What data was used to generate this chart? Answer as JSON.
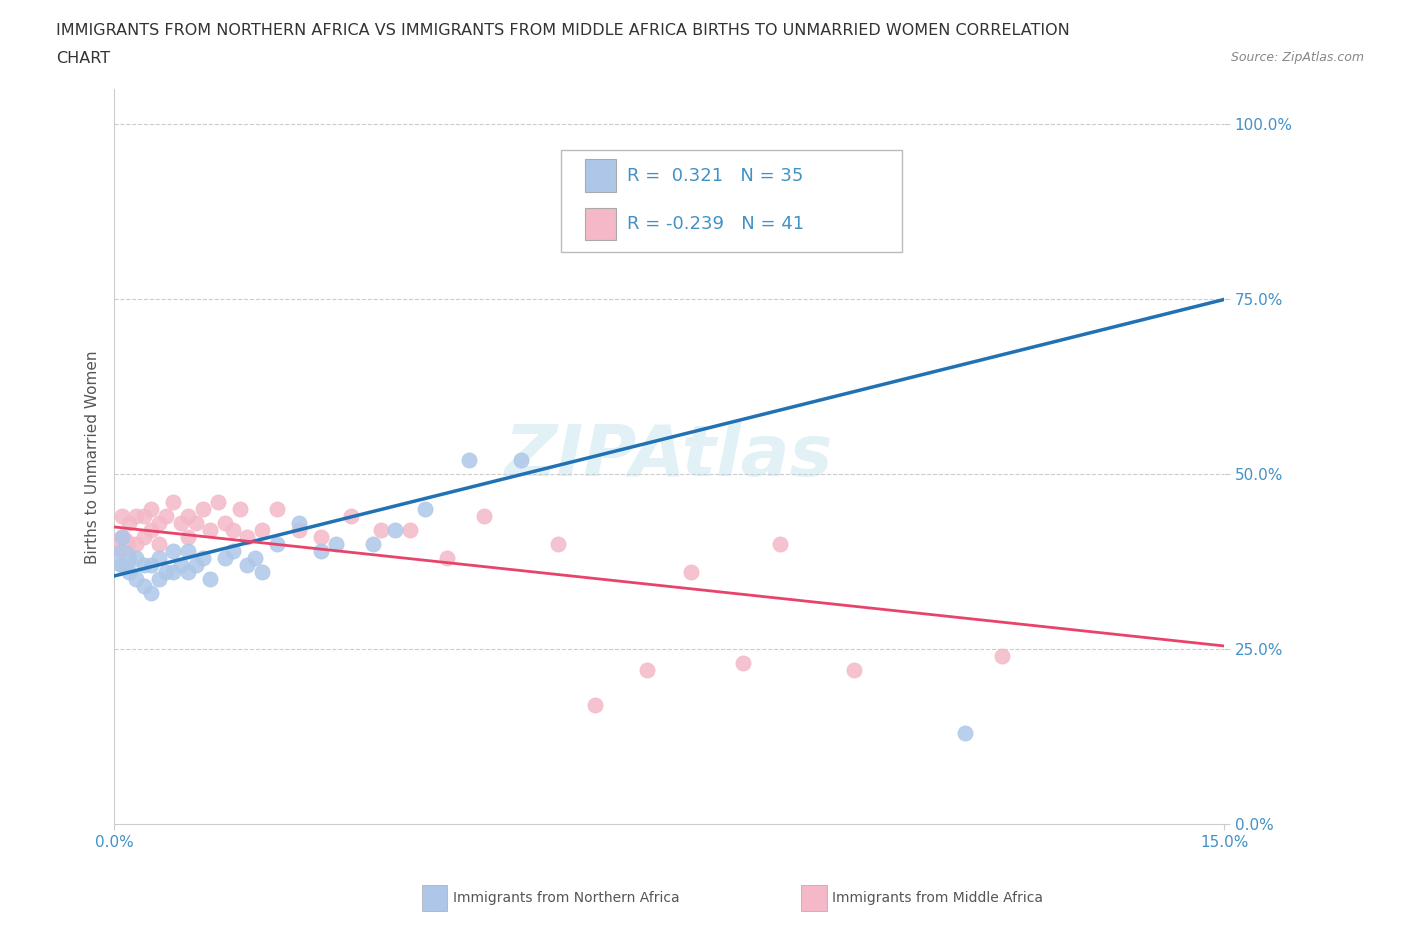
{
  "title_line1": "IMMIGRANTS FROM NORTHERN AFRICA VS IMMIGRANTS FROM MIDDLE AFRICA BIRTHS TO UNMARRIED WOMEN CORRELATION",
  "title_line2": "CHART",
  "source": "Source: ZipAtlas.com",
  "ylabel": "Births to Unmarried Women",
  "xlim": [
    0.0,
    0.15
  ],
  "ylim": [
    0.0,
    1.05
  ],
  "ytick_vals": [
    0.0,
    0.25,
    0.5,
    0.75,
    1.0
  ],
  "ytick_labels": [
    "0.0%",
    "25.0%",
    "50.0%",
    "75.0%",
    "100.0%"
  ],
  "xtick_vals": [
    0.0,
    0.15
  ],
  "xtick_labels": [
    "0.0%",
    "15.0%"
  ],
  "grid_color": "#cccccc",
  "background_color": "#ffffff",
  "blue_scatter_color": "#aec7e8",
  "pink_scatter_color": "#f4b8c8",
  "blue_line_color": "#2171b5",
  "pink_line_color": "#e8446a",
  "tick_color": "#4292c6",
  "series1_name": "Immigrants from Northern Africa",
  "series2_name": "Immigrants from Middle Africa",
  "legend_text1": "R =  0.321   N = 35",
  "legend_text2": "R = -0.239   N = 41",
  "watermark": "ZIPAtlas",
  "title_fontsize": 11.5,
  "tick_fontsize": 11,
  "legend_fontsize": 13,
  "ylabel_fontsize": 11,
  "blue_trend_x0": 0.0,
  "blue_trend_y0": 0.355,
  "blue_trend_x1": 0.15,
  "blue_trend_y1": 0.75,
  "pink_trend_x0": 0.0,
  "pink_trend_y0": 0.425,
  "pink_trend_x1": 0.15,
  "pink_trend_y1": 0.255,
  "blue_scatter_x": [
    0.001,
    0.001,
    0.002,
    0.003,
    0.003,
    0.004,
    0.004,
    0.005,
    0.005,
    0.006,
    0.006,
    0.007,
    0.008,
    0.008,
    0.009,
    0.01,
    0.01,
    0.011,
    0.012,
    0.013,
    0.015,
    0.016,
    0.018,
    0.019,
    0.02,
    0.022,
    0.025,
    0.028,
    0.03,
    0.035,
    0.038,
    0.042,
    0.048,
    0.055,
    0.115
  ],
  "blue_scatter_y": [
    0.37,
    0.41,
    0.36,
    0.35,
    0.38,
    0.34,
    0.37,
    0.33,
    0.37,
    0.35,
    0.38,
    0.36,
    0.36,
    0.39,
    0.37,
    0.36,
    0.39,
    0.37,
    0.38,
    0.35,
    0.38,
    0.39,
    0.37,
    0.38,
    0.36,
    0.4,
    0.43,
    0.39,
    0.4,
    0.4,
    0.42,
    0.45,
    0.52,
    0.52,
    0.13
  ],
  "pink_scatter_x": [
    0.001,
    0.001,
    0.002,
    0.003,
    0.003,
    0.004,
    0.004,
    0.005,
    0.005,
    0.006,
    0.006,
    0.007,
    0.008,
    0.009,
    0.01,
    0.01,
    0.011,
    0.012,
    0.013,
    0.014,
    0.015,
    0.016,
    0.017,
    0.018,
    0.02,
    0.022,
    0.025,
    0.028,
    0.032,
    0.036,
    0.04,
    0.045,
    0.05,
    0.06,
    0.065,
    0.072,
    0.078,
    0.085,
    0.09,
    0.1,
    0.12
  ],
  "pink_scatter_x_large": [
    0.001
  ],
  "pink_scatter_y": [
    0.41,
    0.44,
    0.43,
    0.4,
    0.44,
    0.41,
    0.44,
    0.42,
    0.45,
    0.4,
    0.43,
    0.44,
    0.46,
    0.43,
    0.41,
    0.44,
    0.43,
    0.45,
    0.42,
    0.46,
    0.43,
    0.42,
    0.45,
    0.41,
    0.42,
    0.45,
    0.42,
    0.41,
    0.44,
    0.42,
    0.42,
    0.38,
    0.44,
    0.4,
    0.17,
    0.22,
    0.36,
    0.23,
    0.4,
    0.22,
    0.24
  ],
  "pink_large_y": [
    0.4
  ]
}
